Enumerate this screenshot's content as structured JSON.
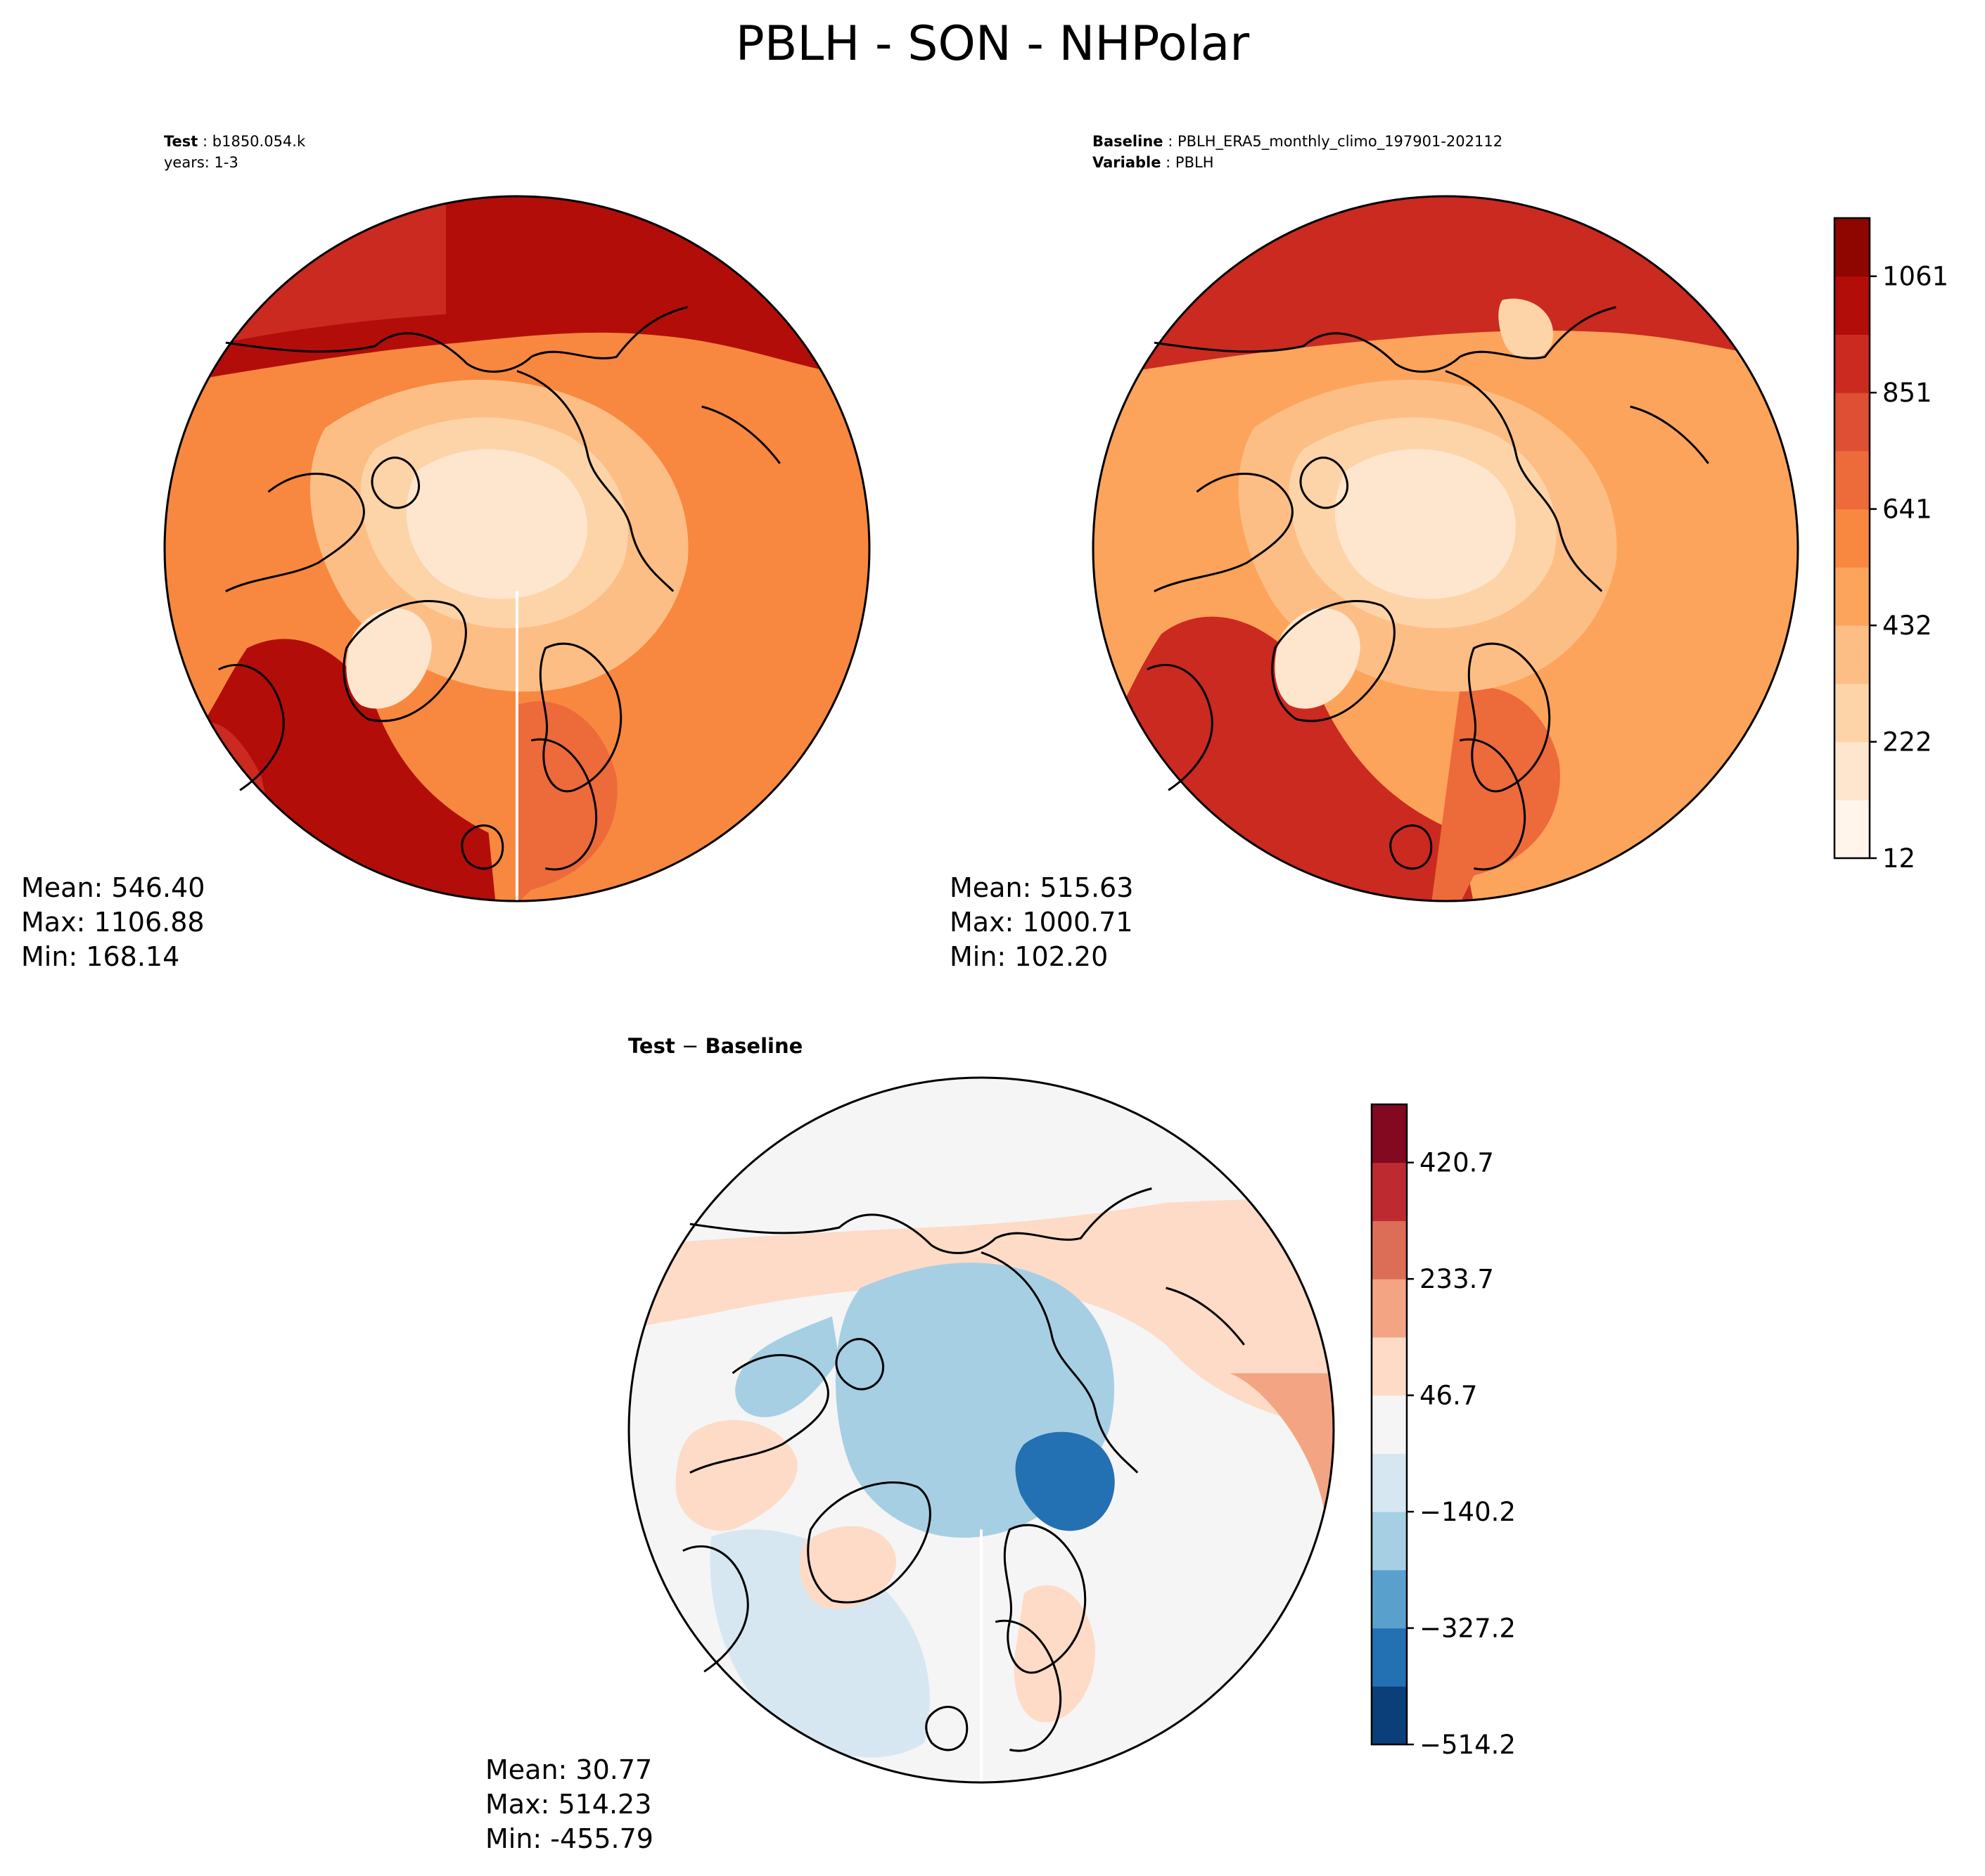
{
  "figure": {
    "title": "PBLH - SON - NHPolar"
  },
  "panels": {
    "test": {
      "label_bold": "Test",
      "label_value": "b1850.054.k",
      "years_text": "years: 1-3",
      "stats": {
        "mean": "Mean: 546.40",
        "max": "Max: 1106.88",
        "min": "Min: 168.14"
      }
    },
    "baseline": {
      "label_bold": "Baseline",
      "label_value": "PBLH_ERA5_monthly_climo_197901-202112",
      "variable_bold": "Variable",
      "variable_value": "PBLH",
      "stats": {
        "mean": "Mean: 515.63",
        "max": "Max: 1000.71",
        "min": "Min: 102.20"
      }
    },
    "diff": {
      "title_left": "Test",
      "title_sep": " − ",
      "title_right": "Baseline",
      "stats": {
        "mean": "Mean: 30.77",
        "max": "Max: 514.23",
        "min": "Min: -455.79"
      }
    }
  },
  "colorbars": {
    "main": {
      "colors": [
        "#fff5eb",
        "#fee6ce",
        "#fdd4a8",
        "#fdbe85",
        "#fda45c",
        "#f8883f",
        "#ed6a3b",
        "#de4f33",
        "#cb2a20",
        "#b30d0a",
        "#8f0500"
      ],
      "tick_labels": [
        "12",
        "222",
        "432",
        "641",
        "851",
        "1061"
      ]
    },
    "diff": {
      "colors": [
        "#0a3f7a",
        "#2370b2",
        "#5aa0cc",
        "#a6cfe4",
        "#d6e7f2",
        "#f5f5f5",
        "#fddbc7",
        "#f3a583",
        "#dc6d57",
        "#bd2b30",
        "#82091f"
      ],
      "tick_labels": [
        "−514.2",
        "−327.2",
        "−140.2",
        "46.7",
        "233.7",
        "420.7"
      ]
    }
  }
}
